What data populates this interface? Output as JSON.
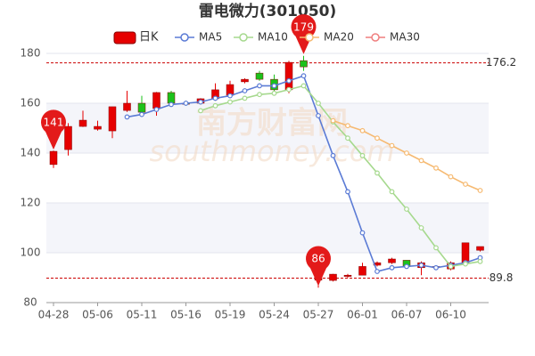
{
  "chart_data": {
    "type": "candlestick",
    "title": "雷电微力(301050)",
    "watermark": [
      "南方财富网",
      "southmoney.com"
    ],
    "candle_name": "日K",
    "up_color": "#e60000",
    "down_color": "#1bc21b",
    "categories": [
      "04-28",
      null,
      null,
      "05-06",
      null,
      null,
      "05-11",
      null,
      null,
      "05-16",
      null,
      null,
      "05-19",
      null,
      null,
      "05-24",
      null,
      null,
      "05-27",
      null,
      null,
      "06-01",
      null,
      null,
      "06-07",
      null,
      null,
      "06-10",
      null,
      null
    ],
    "open": [
      135.4,
      141.4,
      150.7,
      149.6,
      148.9,
      157.1,
      160,
      157.9,
      164.3,
      160,
      160,
      161.8,
      163.2,
      168.6,
      172.1,
      169.6,
      165.4,
      177.1,
      89,
      88.9,
      90.5,
      91,
      95,
      96,
      97,
      94,
      94.5,
      93.5,
      96,
      101
    ],
    "high": [
      141,
      152,
      157,
      153,
      158.6,
      165,
      163,
      164.5,
      165,
      161,
      162,
      168,
      169,
      170,
      173,
      171.5,
      177,
      179,
      91,
      91.5,
      91.5,
      96,
      96.5,
      98,
      97,
      96.5,
      95,
      96.5,
      104,
      102.5
    ],
    "low": [
      134,
      139,
      150.5,
      149,
      146,
      156.5,
      156,
      155,
      159.5,
      159,
      159.5,
      161,
      162.5,
      168,
      169,
      164,
      164,
      173,
      86,
      88.5,
      90,
      91,
      94.5,
      95.5,
      94.5,
      91,
      93.5,
      93,
      95.5,
      100.5
    ],
    "close": [
      140.7,
      150.7,
      153.2,
      150.7,
      158.6,
      160,
      156.4,
      164.3,
      160,
      159.6,
      161.8,
      165.4,
      167.5,
      169.6,
      169.6,
      165.4,
      176.4,
      174.6,
      90,
      91.4,
      91,
      94.5,
      96,
      97.5,
      94.5,
      96,
      94,
      96,
      104,
      102.5
    ],
    "series": [
      {
        "name": "MA5",
        "color": "#5b7bd5",
        "values": [
          null,
          null,
          null,
          null,
          null,
          154.5,
          155.5,
          157.5,
          159.5,
          160,
          160.5,
          162,
          163,
          165,
          167,
          167,
          169,
          171,
          155,
          139,
          124.5,
          108,
          92.5,
          94,
          94.5,
          95,
          94,
          95,
          96,
          98
        ]
      },
      {
        "name": "MA10",
        "color": "#a6d98e",
        "values": [
          null,
          null,
          null,
          null,
          null,
          null,
          null,
          null,
          null,
          null,
          157,
          159,
          160.5,
          162,
          163.5,
          164,
          165.5,
          167,
          160,
          152.5,
          146,
          139,
          132,
          124.5,
          117.5,
          110,
          102,
          94.5,
          95.5,
          96.5
        ]
      },
      {
        "name": "MA20",
        "color": "#f6ba72",
        "values": [
          null,
          null,
          null,
          null,
          null,
          null,
          null,
          null,
          null,
          null,
          null,
          null,
          null,
          null,
          null,
          null,
          null,
          null,
          null,
          153,
          151,
          149,
          146,
          143,
          140,
          137,
          134,
          130.5,
          127.5,
          125
        ]
      },
      {
        "name": "MA30",
        "color": "#ef7f7f",
        "values": [
          null,
          null,
          null,
          null,
          null,
          null,
          null,
          null,
          null,
          null,
          null,
          null,
          null,
          null,
          null,
          null,
          null,
          null,
          null,
          null,
          null,
          null,
          null,
          null,
          null,
          null,
          null,
          null,
          null,
          null
        ]
      }
    ],
    "pins": {
      "start": 141,
      "high": 179,
      "low": 86
    },
    "ref_lines": [
      176.2,
      89.8
    ],
    "ylim": [
      80,
      180
    ],
    "yticks": [
      80,
      100,
      120,
      140,
      160,
      180
    ],
    "grid": true
  }
}
